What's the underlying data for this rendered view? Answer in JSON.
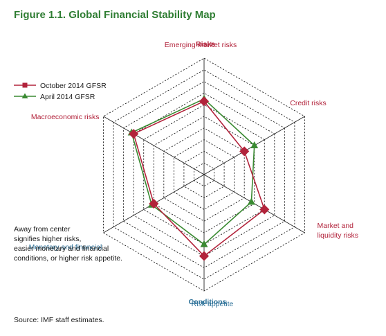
{
  "title": "Figure 1.1. Global Financial Stability Map",
  "group_labels": {
    "risks": "Risks",
    "conditions": "Conditions"
  },
  "annotation": [
    "Away from center",
    "signifies higher risks,",
    "easier monetary and financial",
    "conditions, or higher risk appetite."
  ],
  "source": "Source: IMF staff estimates.",
  "colors": {
    "series1": "#b2233b",
    "series2": "#3a8a32",
    "risk_label": "#b2233b",
    "condition_label": "#2a6f97",
    "title": "#2e7d32"
  },
  "chart_data": {
    "type": "radar",
    "axes": [
      {
        "label": [
          "Credit risks"
        ],
        "group": "risks"
      },
      {
        "label": [
          "Market and",
          "liquidity risks"
        ],
        "group": "risks"
      },
      {
        "label": [
          "Risk appetite"
        ],
        "group": "conditions"
      },
      {
        "label": [
          "Monetary and financial"
        ],
        "group": "conditions"
      },
      {
        "label": [
          "Macroeconomic risks"
        ],
        "group": "risks"
      },
      {
        "label": [
          "Emerging market risks"
        ],
        "group": "risks"
      }
    ],
    "rings": 10,
    "range": [
      0,
      10
    ],
    "grid": true,
    "legend_position": "top-left",
    "series": [
      {
        "name": "October 2014 GFSR",
        "marker": "square",
        "values": [
          4,
          6,
          7,
          5,
          7,
          6.3
        ]
      },
      {
        "name": "April 2014 GFSR",
        "marker": "triangle",
        "values": [
          5,
          4.7,
          6,
          5.2,
          7.2,
          6.5
        ]
      }
    ]
  }
}
